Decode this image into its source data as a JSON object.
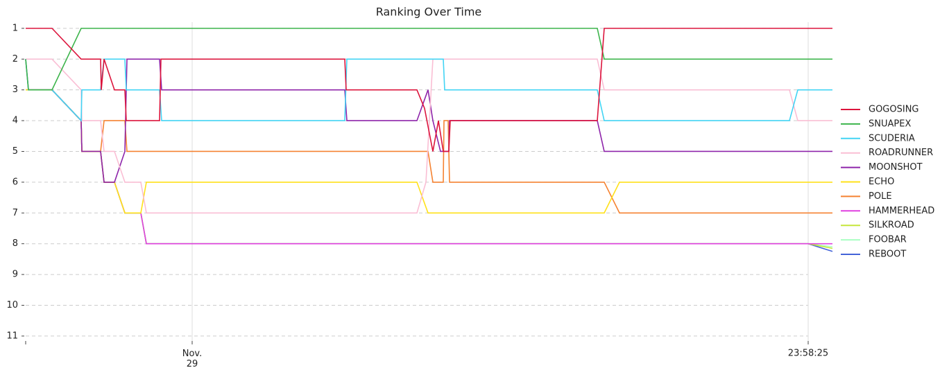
{
  "chart_data": {
    "type": "line",
    "title": "Ranking Over Time",
    "xlim": [
      0,
      1163
    ],
    "xticks": [
      {
        "value": 0,
        "label": null
      },
      {
        "value": 240,
        "label": "Nov.\n29"
      },
      {
        "value": 1128,
        "label": "23:58:25"
      }
    ],
    "ylim": [
      11.16,
      0.8
    ],
    "yticks": [
      1,
      2,
      3,
      4,
      5,
      6,
      7,
      8,
      9,
      10,
      11
    ],
    "grid": true,
    "legend": "right",
    "series": [
      {
        "name": "GOGOSING",
        "color": "#dc143c",
        "x": [
          0,
          38,
          80,
          108,
          109,
          113,
          128,
          143,
          145,
          193,
          195,
          460,
          462,
          564,
          575,
          587,
          595,
          602,
          610,
          612,
          824,
          834,
          1163
        ],
        "values": [
          1,
          1,
          2,
          2,
          3,
          2,
          3,
          3,
          4,
          4,
          2,
          2,
          3,
          3,
          3.6,
          5,
          4,
          5,
          5,
          4,
          4,
          1,
          1
        ]
      },
      {
        "name": "SNUAPEX",
        "color": "#3cb44b",
        "x": [
          0,
          4,
          38,
          80,
          824,
          834,
          1163
        ],
        "values": [
          2,
          3,
          3,
          1,
          1,
          2,
          2
        ]
      },
      {
        "name": "SCUDERIA",
        "color": "#42d4f4",
        "x": [
          0,
          4,
          38,
          80,
          81,
          108,
          113,
          143,
          145,
          193,
          196,
          460,
          463,
          602,
          604,
          824,
          834,
          1101,
          1113,
          1163
        ],
        "values": [
          2,
          3,
          3,
          4,
          3,
          3,
          2,
          2,
          3,
          3,
          4,
          4,
          2,
          2,
          3,
          3,
          4,
          4,
          3,
          3
        ]
      },
      {
        "name": "ROADRUNNER",
        "color": "#fabed4",
        "x": [
          0,
          38,
          80,
          81,
          108,
          113,
          128,
          143,
          166,
          174,
          564,
          577,
          587,
          824,
          834,
          1101,
          1113,
          1163
        ],
        "values": [
          2,
          2,
          3,
          4,
          4,
          5,
          5,
          6,
          6,
          7,
          7,
          6,
          2,
          2,
          3,
          3,
          4,
          4
        ]
      },
      {
        "name": "MOONSHOT",
        "color": "#8e24aa",
        "x": [
          0,
          4,
          38,
          80,
          81,
          108,
          113,
          128,
          143,
          146,
          193,
          196,
          460,
          463,
          564,
          580,
          587,
          598,
          610,
          611,
          824,
          834,
          1163
        ],
        "values": [
          2,
          3,
          3,
          4,
          5,
          5,
          6,
          6,
          5,
          2,
          2,
          3,
          3,
          4,
          4,
          3,
          4,
          5,
          5,
          4,
          4,
          5,
          5
        ]
      },
      {
        "name": "ECHO",
        "color": "#ffe119",
        "x": [
          0,
          38,
          80,
          81,
          108,
          113,
          128,
          143,
          166,
          174,
          564,
          580,
          834,
          856,
          1163
        ],
        "values": [
          3,
          3,
          4,
          5,
          5,
          6,
          6,
          7,
          7,
          6,
          6,
          7,
          7,
          6,
          6
        ]
      },
      {
        "name": "POLE",
        "color": "#f58231",
        "x": [
          0,
          38,
          80,
          81,
          108,
          113,
          143,
          146,
          580,
          587,
          602,
          603,
          609,
          611,
          834,
          856,
          1163
        ],
        "values": [
          3,
          3,
          4,
          5,
          5,
          4,
          4,
          5,
          5,
          6,
          6,
          4,
          4,
          6,
          6,
          7,
          7
        ]
      },
      {
        "name": "HAMMERHEAD",
        "color": "#e040e0",
        "x": [
          0,
          38,
          80,
          81,
          108,
          113,
          128,
          143,
          166,
          174,
          1163
        ],
        "values": [
          3,
          3,
          4,
          5,
          5,
          6,
          6,
          7,
          7,
          8,
          8
        ]
      },
      {
        "name": "SILKROAD",
        "color": "#c5e63a",
        "x": [
          0,
          38,
          80,
          81,
          108,
          113,
          128,
          143,
          166,
          174,
          1128,
          1163
        ],
        "values": [
          3,
          3,
          4,
          5,
          5,
          6,
          6,
          7,
          7,
          8,
          8,
          8.15
        ]
      },
      {
        "name": "FOOBAR",
        "color": "#aaffc3",
        "x": [
          0,
          38,
          80,
          81,
          108,
          113,
          128,
          143,
          166,
          174,
          1128,
          1163
        ],
        "values": [
          3,
          3,
          4,
          5,
          5,
          6,
          6,
          7,
          7,
          8,
          8,
          8.1
        ]
      },
      {
        "name": "REBOOT",
        "color": "#4363d8",
        "x": [
          0,
          38,
          80,
          81,
          108,
          113,
          128,
          143,
          166,
          174,
          1128,
          1163
        ],
        "values": [
          3,
          3,
          4,
          5,
          5,
          6,
          6,
          7,
          7,
          8,
          8,
          8.25
        ]
      }
    ]
  }
}
